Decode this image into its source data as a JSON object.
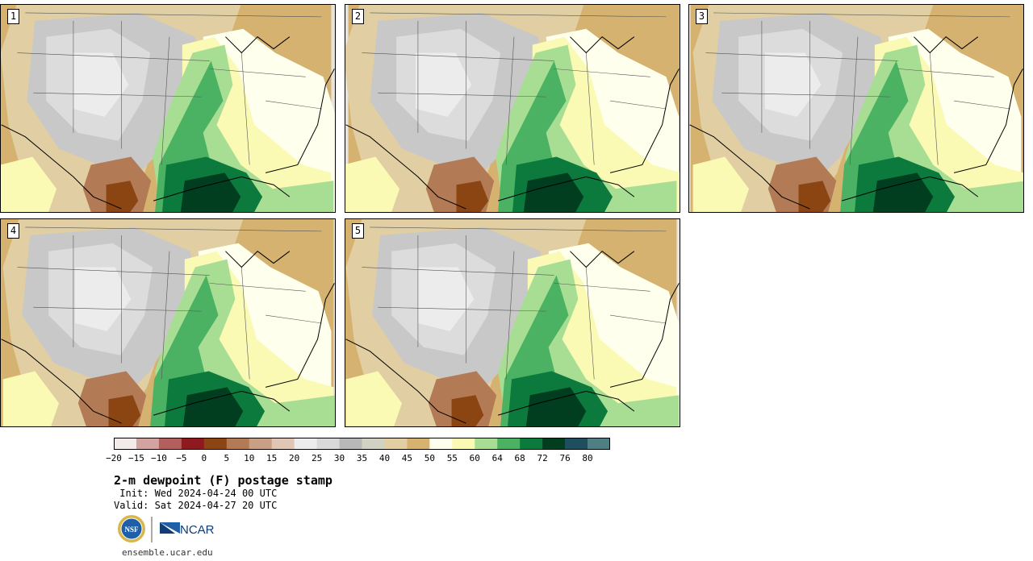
{
  "panels": [
    {
      "label": "1"
    },
    {
      "label": "2"
    },
    {
      "label": "3"
    },
    {
      "label": "4"
    },
    {
      "label": "5"
    }
  ],
  "colorbar": {
    "colors": [
      "#f3ebea",
      "#d2a3a0",
      "#b25f5d",
      "#8e1a1f",
      "#8b4513",
      "#b27a55",
      "#c8a085",
      "#e0c6b4",
      "#ececec",
      "#d9d9d9",
      "#b8b8b8",
      "#d2d2c4",
      "#e1cfa3",
      "#d5b26f",
      "#ffffee",
      "#fafab4",
      "#a8de94",
      "#4bb163",
      "#0d7a3d",
      "#013d1f",
      "#1f4e5f",
      "#4f7e83"
    ],
    "tick_labels": [
      "−20",
      "−15",
      "−10",
      "−5",
      "0",
      "5",
      "10",
      "15",
      "20",
      "25",
      "30",
      "35",
      "40",
      "45",
      "50",
      "55",
      "60",
      "64",
      "68",
      "72",
      "76",
      "80"
    ]
  },
  "title": "2-m dewpoint (F) postage stamp",
  "init": " Init: Wed 2024-04-24 00 UTC",
  "valid": "Valid: Sat 2024-04-27 20 UTC",
  "logos": {
    "nsf": "NSF",
    "ncar": "NCAR"
  },
  "url": "ensemble.ucar.edu"
}
